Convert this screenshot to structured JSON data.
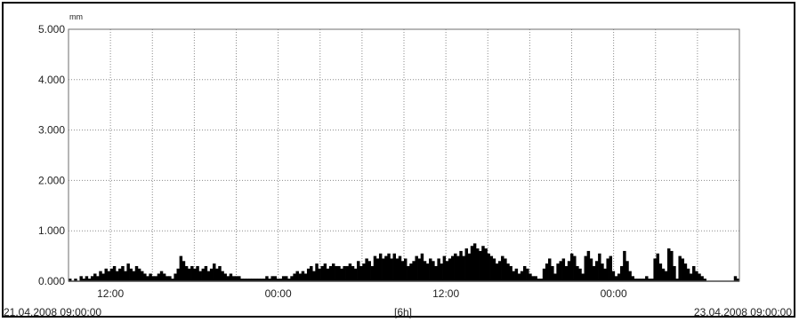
{
  "chart_data": {
    "type": "bar",
    "ylabel": "mm",
    "yticks": [
      "5.000",
      "4.000",
      "3.000",
      "2.000",
      "1.000",
      "0.000"
    ],
    "ylim": [
      0,
      5
    ],
    "xticks": [
      "12:00",
      "00:00",
      "12:00",
      "00:00"
    ],
    "x_start": "21.04.2008 09:00:00",
    "x_end": "23.04.2008 09:00:00",
    "x_interval_label": "[6h]",
    "grid": true,
    "bar_color": "#000000",
    "grid_color": "#8a8a8a",
    "series": [
      {
        "values": [
          0.05,
          0.0,
          0.05,
          0.0,
          0.1,
          0.05,
          0.1,
          0.05,
          0.1,
          0.15,
          0.1,
          0.2,
          0.15,
          0.25,
          0.2,
          0.25,
          0.3,
          0.2,
          0.25,
          0.3,
          0.2,
          0.35,
          0.25,
          0.2,
          0.3,
          0.25,
          0.2,
          0.15,
          0.1,
          0.15,
          0.1,
          0.1,
          0.15,
          0.2,
          0.15,
          0.1,
          0.1,
          0.05,
          0.15,
          0.25,
          0.5,
          0.4,
          0.3,
          0.25,
          0.3,
          0.25,
          0.3,
          0.2,
          0.25,
          0.3,
          0.2,
          0.25,
          0.35,
          0.25,
          0.3,
          0.2,
          0.15,
          0.1,
          0.15,
          0.1,
          0.1,
          0.1,
          0.05,
          0.05,
          0.05,
          0.05,
          0.05,
          0.05,
          0.05,
          0.05,
          0.05,
          0.1,
          0.05,
          0.1,
          0.1,
          0.05,
          0.05,
          0.1,
          0.1,
          0.05,
          0.1,
          0.15,
          0.2,
          0.15,
          0.2,
          0.15,
          0.25,
          0.3,
          0.2,
          0.35,
          0.25,
          0.3,
          0.35,
          0.25,
          0.3,
          0.35,
          0.3,
          0.3,
          0.25,
          0.3,
          0.3,
          0.35,
          0.3,
          0.25,
          0.4,
          0.3,
          0.35,
          0.45,
          0.4,
          0.3,
          0.5,
          0.45,
          0.55,
          0.45,
          0.5,
          0.55,
          0.45,
          0.55,
          0.45,
          0.5,
          0.4,
          0.45,
          0.3,
          0.35,
          0.4,
          0.5,
          0.45,
          0.55,
          0.4,
          0.35,
          0.45,
          0.4,
          0.3,
          0.45,
          0.35,
          0.5,
          0.4,
          0.45,
          0.5,
          0.55,
          0.5,
          0.6,
          0.5,
          0.65,
          0.55,
          0.7,
          0.75,
          0.65,
          0.6,
          0.7,
          0.65,
          0.55,
          0.5,
          0.45,
          0.35,
          0.4,
          0.5,
          0.45,
          0.35,
          0.3,
          0.2,
          0.25,
          0.15,
          0.2,
          0.3,
          0.25,
          0.15,
          0.1,
          0.1,
          0.05,
          0.05,
          0.25,
          0.35,
          0.45,
          0.3,
          0.15,
          0.35,
          0.4,
          0.45,
          0.3,
          0.4,
          0.55,
          0.5,
          0.3,
          0.25,
          0.15,
          0.5,
          0.6,
          0.45,
          0.3,
          0.4,
          0.55,
          0.35,
          0.25,
          0.45,
          0.5,
          0.2,
          0.1,
          0.15,
          0.3,
          0.6,
          0.4,
          0.2,
          0.1,
          0.05,
          0.05,
          0.05,
          0.05,
          0.1,
          0.05,
          0.05,
          0.45,
          0.55,
          0.35,
          0.25,
          0.2,
          0.65,
          0.6,
          0.3,
          0.05,
          0.5,
          0.45,
          0.35,
          0.25,
          0.15,
          0.3,
          0.2,
          0.15,
          0.1,
          0.05,
          0.0,
          0.0,
          0.0,
          0.0,
          0.0,
          0.0,
          0.0,
          0.0,
          0.0,
          0.0,
          0.1,
          0.05
        ]
      }
    ]
  }
}
